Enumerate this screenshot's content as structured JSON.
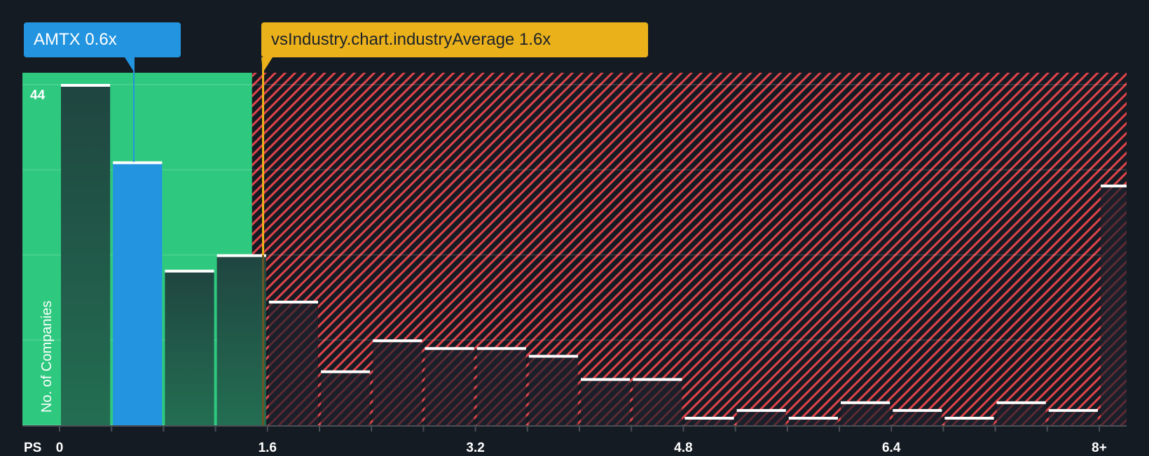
{
  "callouts": {
    "company": "AMTX 0.6x",
    "industry": "vsIndustry.chart.industryAverage 1.6x"
  },
  "axis": {
    "x_prefix": "PS",
    "y_label": "No. of Companies",
    "y_max_label": "44",
    "x_ticks": [
      "0",
      "1.6",
      "3.2",
      "4.8",
      "6.4",
      "8+"
    ]
  },
  "colors": {
    "background": "#151b23",
    "green_zone": "#2ec97f",
    "bar_green": "#1f4a3f",
    "bar_highlight": "#2394df",
    "hatch_red": "#e0444a",
    "industry_line": "#ebb11a",
    "bar_cap": "#ffffff"
  },
  "chart_data": {
    "type": "bar",
    "title": "",
    "xlabel": "PS",
    "ylabel": "No. of Companies",
    "ylim": [
      0,
      44
    ],
    "grid": true,
    "bins": [
      "0-0.4",
      "0.4-0.8",
      "0.8-1.2",
      "1.2-1.6",
      "1.6-2.0",
      "2.0-2.4",
      "2.4-2.8",
      "2.8-3.2",
      "3.2-3.6",
      "3.6-4.0",
      "4.0-4.4",
      "4.4-4.8",
      "4.8-5.2",
      "5.2-5.6",
      "5.6-6.0",
      "6.0-6.4",
      "6.4-6.8",
      "6.8-7.2",
      "7.2-7.6",
      "7.6-8.0",
      "8+"
    ],
    "values": [
      44,
      34,
      20,
      22,
      16,
      7,
      11,
      10,
      10,
      9,
      6,
      6,
      1,
      2,
      1,
      3,
      2,
      1,
      3,
      2,
      31
    ],
    "highlight_bin_index": 1,
    "company": {
      "ticker": "AMTX",
      "value": 0.6
    },
    "industry_average": 1.6,
    "x_tick_labels": [
      "0",
      "1.6",
      "3.2",
      "4.8",
      "6.4",
      "8+"
    ],
    "y_gridlines": [
      0,
      11,
      22,
      33,
      44
    ]
  }
}
